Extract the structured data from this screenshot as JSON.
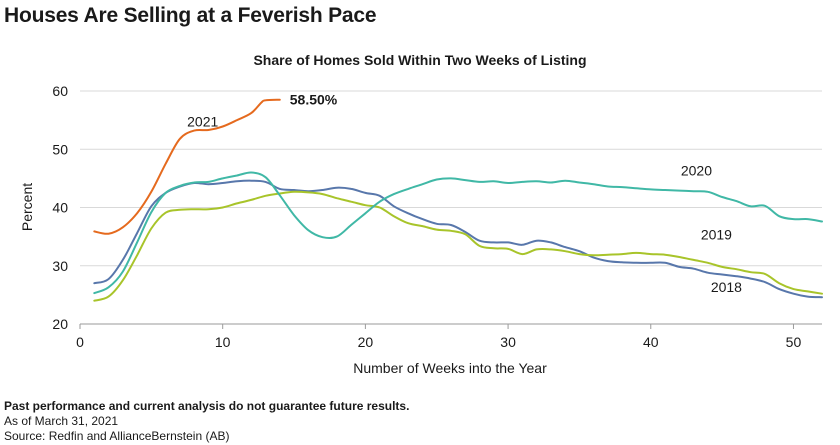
{
  "headline": "Houses Are Selling at a Feverish Pace",
  "footer": {
    "disclaimer": "Past performance and current analysis do not guarantee future results.",
    "as_of": "As of March 31, 2021",
    "source": "Source: Redfin and AllianceBernstein (AB)"
  },
  "chart_data": {
    "type": "line",
    "title": "Share of Homes Sold Within Two Weeks of Listing",
    "xlabel": "Number of Weeks into the Year",
    "ylabel": "Percent",
    "xlim": [
      0,
      52
    ],
    "ylim": [
      20,
      60
    ],
    "xticks": [
      0,
      10,
      20,
      30,
      40,
      50
    ],
    "yticks": [
      20,
      30,
      40,
      50,
      60
    ],
    "grid": "horizontal",
    "annotations": [
      {
        "text": "58.50%",
        "x": 14,
        "y": 58.5
      }
    ],
    "series": [
      {
        "name": "2021",
        "color": "#e56a1e",
        "points": [
          [
            1,
            35.9
          ],
          [
            2,
            35.5
          ],
          [
            3,
            36.6
          ],
          [
            4,
            39.0
          ],
          [
            5,
            42.7
          ],
          [
            6,
            47.5
          ],
          [
            7,
            51.8
          ],
          [
            8,
            53.2
          ],
          [
            9,
            53.3
          ],
          [
            10,
            53.9
          ],
          [
            11,
            55.0
          ],
          [
            12,
            56.2
          ],
          [
            12.7,
            58.0
          ],
          [
            13,
            58.4
          ],
          [
            14,
            58.5
          ]
        ]
      },
      {
        "name": "2020",
        "color": "#40b8a6",
        "points": [
          [
            1,
            25.3
          ],
          [
            2,
            26.3
          ],
          [
            3,
            29.0
          ],
          [
            4,
            34.0
          ],
          [
            5,
            39.2
          ],
          [
            6,
            42.5
          ],
          [
            7,
            43.7
          ],
          [
            8,
            44.3
          ],
          [
            9,
            44.4
          ],
          [
            10,
            45.0
          ],
          [
            11,
            45.5
          ],
          [
            12,
            46.0
          ],
          [
            13,
            45.2
          ],
          [
            14,
            42.1
          ],
          [
            15,
            38.7
          ],
          [
            16,
            36.1
          ],
          [
            17,
            34.9
          ],
          [
            18,
            35.0
          ],
          [
            19,
            37.0
          ],
          [
            20,
            39.0
          ],
          [
            21,
            41.0
          ],
          [
            22,
            42.3
          ],
          [
            23,
            43.2
          ],
          [
            24,
            44.0
          ],
          [
            25,
            44.8
          ],
          [
            26,
            45.0
          ],
          [
            27,
            44.7
          ],
          [
            28,
            44.4
          ],
          [
            29,
            44.5
          ],
          [
            30,
            44.2
          ],
          [
            31,
            44.4
          ],
          [
            32,
            44.5
          ],
          [
            33,
            44.3
          ],
          [
            34,
            44.6
          ],
          [
            35,
            44.3
          ],
          [
            36,
            44.0
          ],
          [
            37,
            43.6
          ],
          [
            38,
            43.5
          ],
          [
            39,
            43.3
          ],
          [
            40,
            43.1
          ],
          [
            41,
            43.0
          ],
          [
            42,
            42.9
          ],
          [
            43,
            42.8
          ],
          [
            44,
            42.7
          ],
          [
            45,
            41.8
          ],
          [
            46,
            41.1
          ],
          [
            47,
            40.2
          ],
          [
            48,
            40.3
          ],
          [
            49,
            38.5
          ],
          [
            50,
            38.0
          ],
          [
            51,
            38.0
          ],
          [
            52,
            37.6
          ]
        ]
      },
      {
        "name": "2019",
        "color": "#a8c42a",
        "points": [
          [
            1,
            24.0
          ],
          [
            2,
            24.7
          ],
          [
            3,
            27.5
          ],
          [
            4,
            31.8
          ],
          [
            5,
            36.4
          ],
          [
            6,
            39.1
          ],
          [
            7,
            39.6
          ],
          [
            8,
            39.7
          ],
          [
            9,
            39.7
          ],
          [
            10,
            40.0
          ],
          [
            11,
            40.7
          ],
          [
            12,
            41.3
          ],
          [
            13,
            42.0
          ],
          [
            14,
            42.4
          ],
          [
            15,
            42.7
          ],
          [
            16,
            42.6
          ],
          [
            17,
            42.3
          ],
          [
            18,
            41.6
          ],
          [
            19,
            41.0
          ],
          [
            20,
            40.4
          ],
          [
            21,
            40.0
          ],
          [
            22,
            38.5
          ],
          [
            23,
            37.3
          ],
          [
            24,
            36.8
          ],
          [
            25,
            36.2
          ],
          [
            26,
            36.0
          ],
          [
            27,
            35.4
          ],
          [
            28,
            33.4
          ],
          [
            29,
            33.0
          ],
          [
            30,
            32.9
          ],
          [
            31,
            32.0
          ],
          [
            32,
            32.8
          ],
          [
            33,
            32.8
          ],
          [
            34,
            32.5
          ],
          [
            35,
            32.0
          ],
          [
            36,
            31.8
          ],
          [
            37,
            31.9
          ],
          [
            38,
            32.0
          ],
          [
            39,
            32.2
          ],
          [
            40,
            32.0
          ],
          [
            41,
            31.9
          ],
          [
            42,
            31.5
          ],
          [
            43,
            31.0
          ],
          [
            44,
            30.5
          ],
          [
            45,
            29.8
          ],
          [
            46,
            29.4
          ],
          [
            47,
            28.9
          ],
          [
            48,
            28.6
          ],
          [
            49,
            27.0
          ],
          [
            50,
            26.0
          ],
          [
            51,
            25.6
          ],
          [
            52,
            25.2
          ]
        ]
      },
      {
        "name": "2018",
        "color": "#5877ab",
        "points": [
          [
            1,
            27.0
          ],
          [
            2,
            27.7
          ],
          [
            3,
            31.0
          ],
          [
            4,
            35.6
          ],
          [
            5,
            40.2
          ],
          [
            6,
            42.5
          ],
          [
            7,
            43.6
          ],
          [
            8,
            44.2
          ],
          [
            9,
            44.0
          ],
          [
            10,
            44.2
          ],
          [
            11,
            44.5
          ],
          [
            12,
            44.6
          ],
          [
            13,
            44.4
          ],
          [
            14,
            43.2
          ],
          [
            15,
            43.0
          ],
          [
            16,
            42.8
          ],
          [
            17,
            43.0
          ],
          [
            18,
            43.4
          ],
          [
            19,
            43.2
          ],
          [
            20,
            42.5
          ],
          [
            21,
            42.0
          ],
          [
            22,
            40.2
          ],
          [
            23,
            39.0
          ],
          [
            24,
            38.0
          ],
          [
            25,
            37.2
          ],
          [
            26,
            37.0
          ],
          [
            27,
            35.8
          ],
          [
            28,
            34.3
          ],
          [
            29,
            34.0
          ],
          [
            30,
            34.0
          ],
          [
            31,
            33.6
          ],
          [
            32,
            34.3
          ],
          [
            33,
            34.0
          ],
          [
            34,
            33.2
          ],
          [
            35,
            32.5
          ],
          [
            36,
            31.4
          ],
          [
            37,
            30.8
          ],
          [
            38,
            30.6
          ],
          [
            39,
            30.5
          ],
          [
            40,
            30.5
          ],
          [
            41,
            30.5
          ],
          [
            42,
            29.8
          ],
          [
            43,
            29.5
          ],
          [
            44,
            28.8
          ],
          [
            45,
            28.5
          ],
          [
            46,
            28.2
          ],
          [
            47,
            27.8
          ],
          [
            48,
            27.2
          ],
          [
            49,
            26.0
          ],
          [
            50,
            25.2
          ],
          [
            51,
            24.7
          ],
          [
            52,
            24.6
          ]
        ]
      }
    ],
    "series_label_positions": [
      {
        "name": "2021",
        "x": 8.6,
        "y": 53.9
      },
      {
        "name": "2020",
        "x": 43.2,
        "y": 45.5
      },
      {
        "name": "2019",
        "x": 44.6,
        "y": 34.5
      },
      {
        "name": "2018",
        "x": 45.3,
        "y": 25.5
      }
    ]
  }
}
